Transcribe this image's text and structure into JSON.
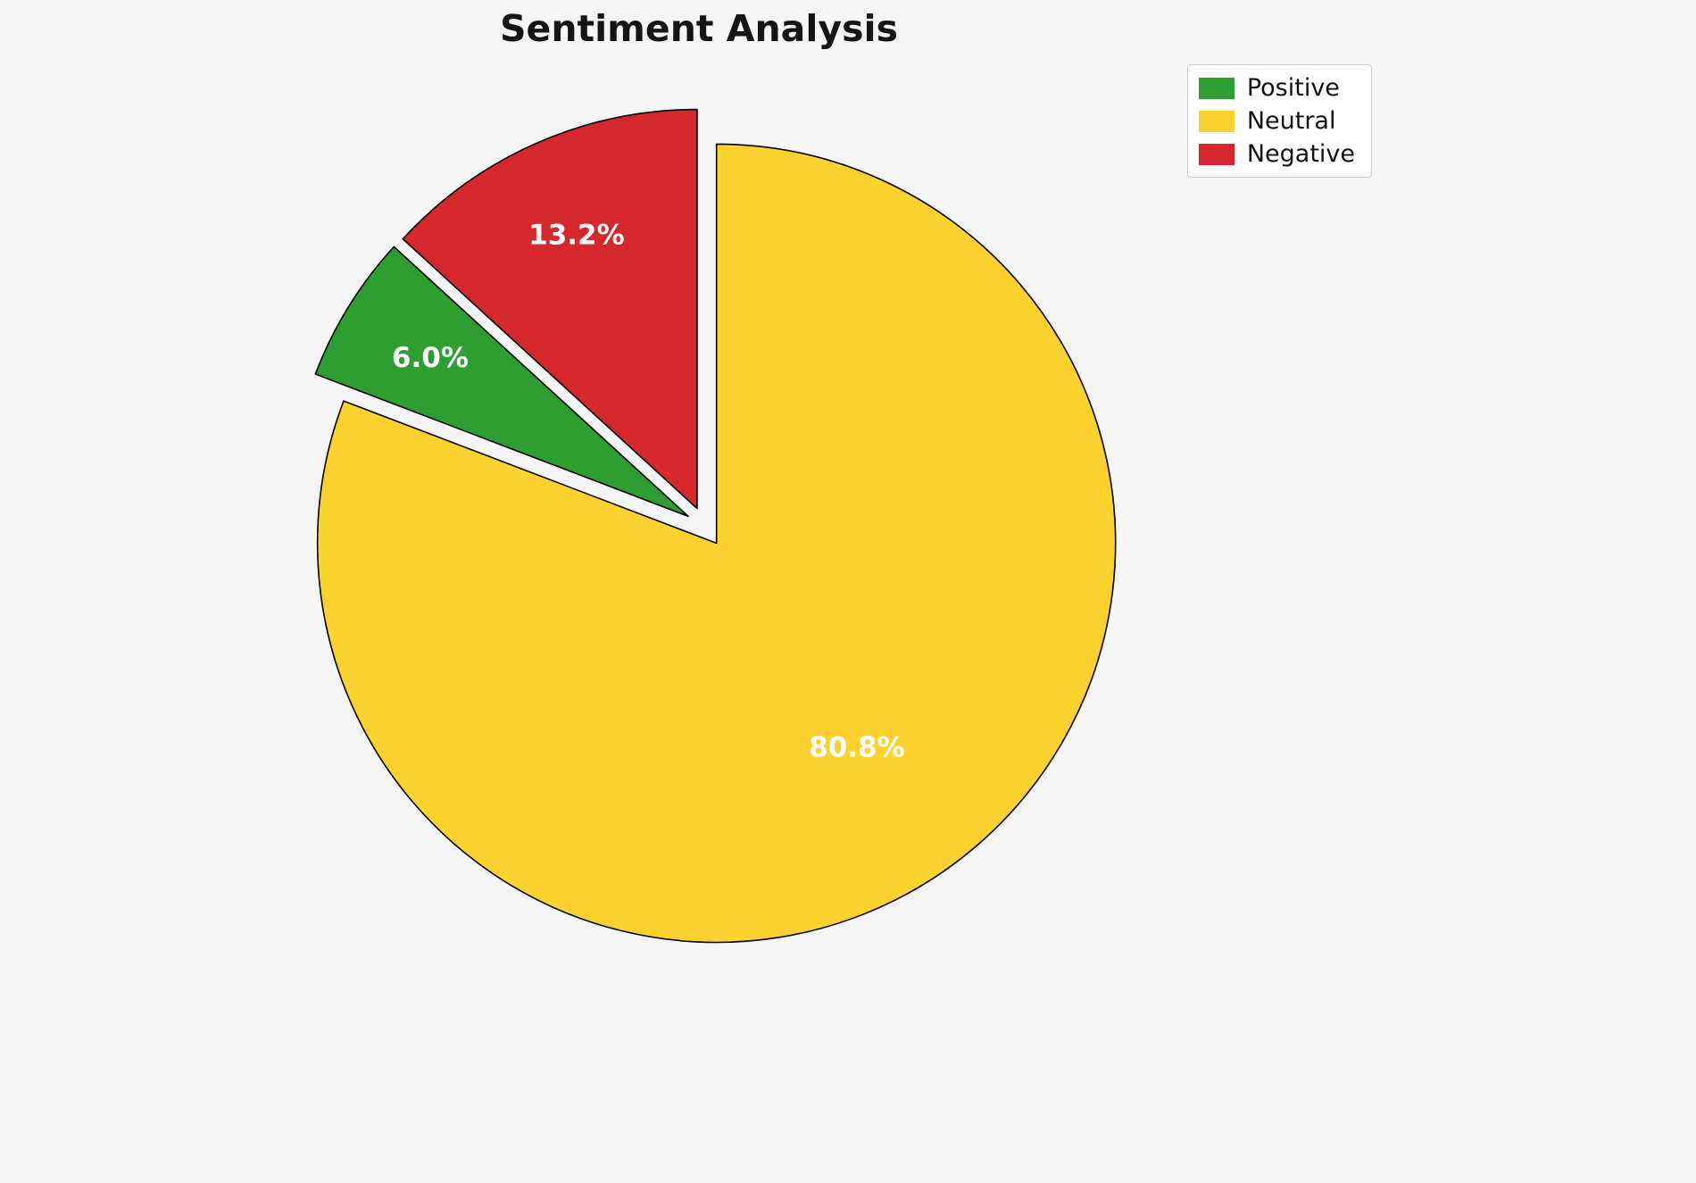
{
  "chart_data": {
    "type": "pie",
    "title": "Sentiment Analysis",
    "series": [
      {
        "name": "Positive",
        "value": 6.0,
        "percent_label": "6.0%",
        "color": "#2f9e32"
      },
      {
        "name": "Neutral",
        "value": 80.8,
        "percent_label": "80.8%",
        "color": "#fcd22f"
      },
      {
        "name": "Negative",
        "value": 13.2,
        "percent_label": "13.2%",
        "color": "#d5282c"
      }
    ],
    "legend": {
      "position": "upper-right",
      "labels": [
        "Positive",
        "Neutral",
        "Negative"
      ]
    },
    "startangle": 90,
    "direction": "clockwise",
    "draw_order": [
      "Neutral",
      "Positive",
      "Negative"
    ],
    "explode": 0.05,
    "label_distances": {
      "Neutral": 0.62,
      "Positive": 0.76,
      "Negative": 0.75
    },
    "percent_label_color": "#ffffff",
    "wedge_edge_color": "#000000",
    "background_color": "#f5f5f6"
  }
}
